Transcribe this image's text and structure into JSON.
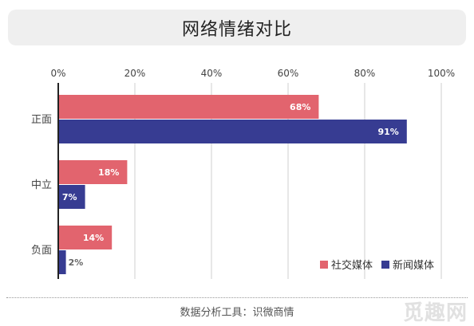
{
  "header": {
    "title": "网络情绪对比"
  },
  "footer": {
    "source": "数据分析工具：识微商情"
  },
  "watermark": {
    "text": "觅趣网"
  },
  "chart_data": {
    "type": "bar",
    "orientation": "horizontal",
    "title": "网络情绪对比",
    "categories": [
      "正面",
      "中立",
      "负面"
    ],
    "series": [
      {
        "name": "社交媒体",
        "values": [
          68,
          18,
          14
        ],
        "color": "#e2646e"
      },
      {
        "name": "新闻媒体",
        "values": [
          91,
          7,
          2
        ],
        "color": "#373c92"
      }
    ],
    "x_ticks": [
      "0%",
      "20%",
      "40%",
      "60%",
      "80%",
      "100%"
    ],
    "xlim": [
      0,
      100
    ],
    "value_format": "percent",
    "grid": true,
    "x_axis_position": "top",
    "legend_position": "bottom-right"
  }
}
